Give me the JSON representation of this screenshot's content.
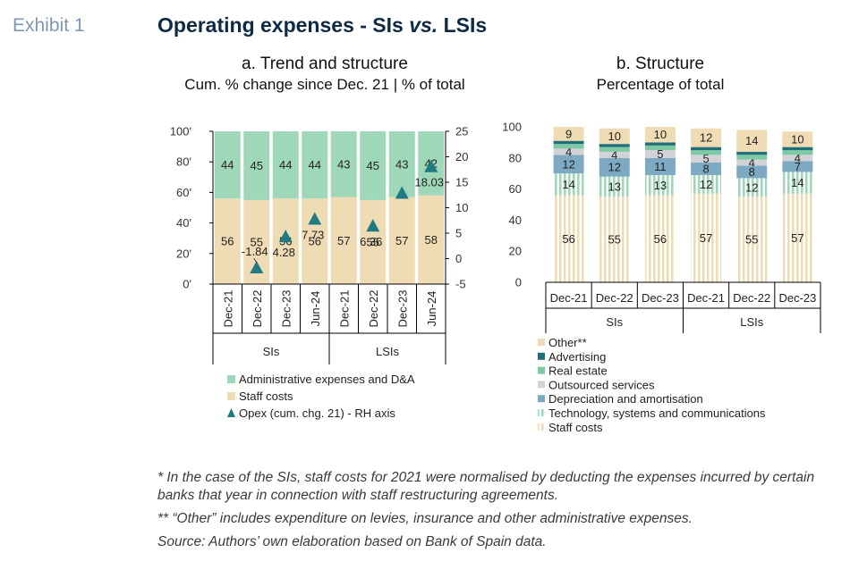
{
  "header": {
    "exhibit": "Exhibit 1",
    "title_part1": "Operating expenses - SIs ",
    "title_vs": "vs.",
    "title_part2": " LSIs"
  },
  "panel_a": {
    "title": "a. Trend and structure",
    "subtitle": "Cum. % change since Dec. 21 | % of total"
  },
  "panel_b": {
    "title": "b. Structure",
    "subtitle": "Percentage of total"
  },
  "notes": [
    "* In the case of the SIs, staff costs for 2021 were normalised by deducting the expenses incurred by certain banks that year in connection with staff restructuring agreements.",
    "** “Other” includes expenditure on levies, insurance and other administrative expenses.",
    "Source: Authors’ own elaboration based on Bank of Spain data."
  ],
  "chart_data": [
    {
      "type": "bar",
      "stacked": true,
      "categories": [
        "Dec-21",
        "Dec-22",
        "Dec-23",
        "Jun-24",
        "Dec-21",
        "Dec-22",
        "Dec-23",
        "Jun-24"
      ],
      "groups": [
        {
          "label": "SIs",
          "count": 4
        },
        {
          "label": "LSIs",
          "count": 4
        }
      ],
      "left_ticks": [
        "100'",
        "80'",
        "60'",
        "40'",
        "20'",
        "0'"
      ],
      "right_ticks": [
        "25",
        "20",
        "15",
        "10",
        "5",
        "0",
        "-5"
      ],
      "ylim": [
        0,
        100
      ],
      "y2lim": [
        -5,
        25
      ],
      "series": [
        {
          "name": "Staff costs",
          "color": "#f0dcb4",
          "values": [
            56,
            55,
            56,
            56,
            57,
            55,
            57,
            58
          ]
        },
        {
          "name": "Administrative expenses and D&A",
          "color": "#9fd8b8",
          "values": [
            44,
            45,
            44,
            44,
            43,
            45,
            43,
            42
          ]
        }
      ],
      "markers": {
        "name": "Opex (cum. chg. 21) - RH axis",
        "color": "#1f7a82",
        "values": [
          null,
          -1.84,
          4.28,
          7.73,
          null,
          6.36,
          12.8,
          18.03
        ],
        "labels": [
          "",
          "-1.84",
          "4.28",
          "7.73",
          "",
          "6.36",
          "",
          "18.03"
        ]
      }
    },
    {
      "type": "bar",
      "stacked": true,
      "categories": [
        "Dec-21",
        "Dec-22",
        "Dec-23",
        "Dec-21",
        "Dec-22",
        "Dec-23"
      ],
      "groups": [
        {
          "label": "SIs",
          "count": 3
        },
        {
          "label": "LSIs",
          "count": 3
        }
      ],
      "y_ticks": [
        "100",
        "80",
        "60",
        "40",
        "20",
        "0"
      ],
      "ylim": [
        0,
        100
      ],
      "series": [
        {
          "name": "Staff costs",
          "color": "#f0dcb4",
          "pattern": "stripes",
          "values": [
            56,
            55,
            56,
            57,
            55,
            57
          ],
          "labels": [
            "56",
            "55",
            "56",
            "57",
            "55",
            "57"
          ]
        },
        {
          "name": "Technology, systems and communications",
          "color": "#9fd8b8",
          "pattern": "stripes",
          "values": [
            14,
            13,
            13,
            12,
            12,
            14
          ],
          "labels": [
            "14",
            "13",
            "13",
            "12",
            "12",
            "14"
          ]
        },
        {
          "name": "Depreciation and amortisation",
          "color": "#7ea9c2",
          "values": [
            12,
            12,
            11,
            8,
            8,
            7
          ],
          "labels": [
            "12",
            "12",
            "11",
            "8",
            "8",
            "7"
          ]
        },
        {
          "name": "Outsourced services",
          "color": "#d3d3d7",
          "values": [
            4,
            4,
            5,
            5,
            4,
            4
          ],
          "labels": [
            "4",
            "4",
            "5",
            "5",
            "4",
            "4"
          ]
        },
        {
          "name": "Real estate",
          "color": "#7fc8a4",
          "values": [
            3,
            3,
            3,
            3,
            3,
            3
          ],
          "labels": [
            "",
            "",
            "",
            "",
            "",
            ""
          ]
        },
        {
          "name": "Advertising",
          "color": "#1f6e78",
          "values": [
            2,
            2,
            2,
            2,
            2,
            2
          ],
          "labels": [
            "",
            "",
            "",
            "",
            "",
            ""
          ]
        },
        {
          "name": "Other**",
          "color": "#f0dcb4",
          "values": [
            9,
            10,
            10,
            12,
            14,
            10
          ],
          "labels": [
            "9",
            "10",
            "10",
            "12",
            "14",
            "10"
          ]
        }
      ],
      "legend_order": [
        "Other**",
        "Advertising",
        "Real estate",
        "Outsourced services",
        "Depreciation and amortisation",
        "Technology, systems and communications",
        "Staff costs"
      ]
    }
  ]
}
